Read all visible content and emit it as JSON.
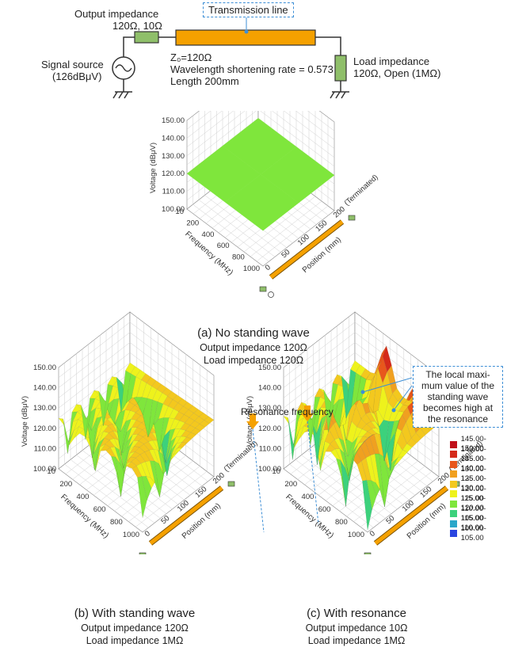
{
  "circuit": {
    "output_impedance_label": "Output impedance",
    "output_impedance_value": "120Ω, 10Ω",
    "transmission_line_label": "Transmission line",
    "z0": "Z₀=120Ω",
    "shortening": "Wavelength shortening rate = 0.573",
    "length": "Length 200mm",
    "load_label": "Load impedance",
    "load_value": "120Ω, Open (1MΩ)",
    "source_label": "Signal source",
    "source_value": "(126dBμV)",
    "colors": {
      "line": "#f5a100",
      "resistor": "#8fbf6a",
      "wire": "#333333",
      "callout": "#3d8fd6"
    }
  },
  "plot_axes": {
    "voltage_label": "Voltage (dBμV)",
    "voltage_ticks": [
      "150.00",
      "140.00",
      "130.00",
      "120.00",
      "110.00",
      "100.00"
    ],
    "frequency_label": "Frequency (MHz)",
    "frequency_ticks": [
      "10",
      "200",
      "400",
      "600",
      "800",
      "1000"
    ],
    "position_label": "Position (mm)",
    "position_ticks": [
      "0",
      "50",
      "100",
      "150",
      "200"
    ],
    "terminated_label": "(Terminated)"
  },
  "panel_a": {
    "caption": "(a) No standing wave",
    "output": "Output impedance 120Ω",
    "load": "Load impedance 120Ω"
  },
  "panel_b": {
    "caption": "(b) With standing wave",
    "output": "Output impedance 120Ω",
    "load": "Load impedance 1MΩ"
  },
  "panel_c": {
    "caption": "(c) With resonance",
    "output": "Output impedance 10Ω",
    "load": "Load impedance 1MΩ",
    "resonance_label": "Resonance frequency",
    "note": [
      "The local maxi-",
      "mum value of the",
      "standing wave",
      "becomes high at",
      "the resonance"
    ]
  },
  "legend": [
    {
      "label": "145.00-150.00",
      "color": "#c0101a"
    },
    {
      "label": "140.00-145.00",
      "color": "#d42a1a"
    },
    {
      "label": "135.00-140.00",
      "color": "#e8571c"
    },
    {
      "label": "130.00-135.00",
      "color": "#f0a020"
    },
    {
      "label": "125.00-130.00",
      "color": "#f3c81e"
    },
    {
      "label": "120.00-125.00",
      "color": "#eef21c"
    },
    {
      "label": "115.00-120.00",
      "color": "#7fe63c"
    },
    {
      "label": "110.00-115.00",
      "color": "#3cd17c"
    },
    {
      "label": "105.00-110.00",
      "color": "#2aa6c9"
    },
    {
      "label": "100.00-105.00",
      "color": "#2a45e0"
    }
  ]
}
